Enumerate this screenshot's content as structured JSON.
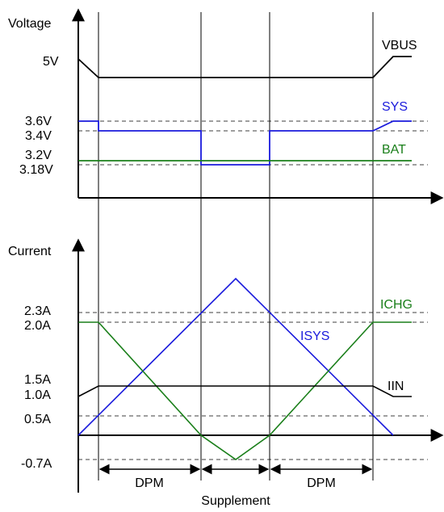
{
  "voltage_panel": {
    "axis_title": "Voltage",
    "tick_labels": [
      "5V",
      "3.6V",
      "3.4V",
      "3.2V",
      "3.18V"
    ],
    "series": [
      {
        "name": "VBUS",
        "color": "#000000"
      },
      {
        "name": "SYS",
        "color": "#1a1adc"
      },
      {
        "name": "BAT",
        "color": "#1a7f1a"
      }
    ]
  },
  "current_panel": {
    "axis_title": "Current",
    "tick_labels": [
      "2.3A",
      "2.0A",
      "1.5A",
      "1.0A",
      "0.5A",
      "-0.7A"
    ],
    "series": [
      {
        "name": "ICHG",
        "color": "#1a7f1a"
      },
      {
        "name": "ISYS",
        "color": "#1a1adc"
      },
      {
        "name": "IIN",
        "color": "#000000"
      }
    ]
  },
  "phase_labels": {
    "left": "DPM",
    "right": "DPM",
    "bottom": "Supplement"
  }
}
